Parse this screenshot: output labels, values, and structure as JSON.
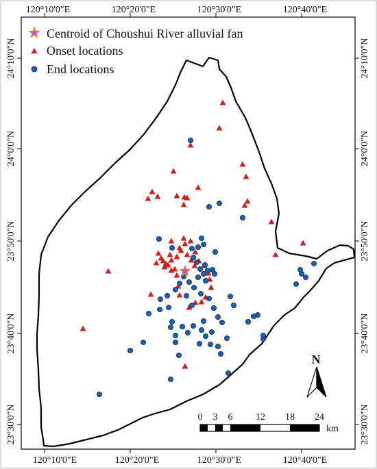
{
  "map": {
    "top_lon_labels": [
      "120°10'0\"E",
      "120°20'0\"E",
      "120°30'0\"E",
      "120°40'0\"E"
    ],
    "bottom_lon_labels": [
      "120°10'0\"E",
      "120°20'0\"E",
      "120°30'0\"E",
      "120°40'0\"E"
    ],
    "left_lat_labels": [
      "24°10'0\"N",
      "24°0'0\"N",
      "23°50'0\"N",
      "23°40'0\"N",
      "23°30'0\"N"
    ],
    "right_lat_labels": [
      "24°10'0\"N",
      "24°0'0\"N",
      "23°50'0\"N",
      "23°40'0\"N",
      "23°30'0\"N"
    ],
    "legend": [
      {
        "label": "Centroid of Choushui River alluvial fan",
        "symbol": "star",
        "color": "#cc55cc",
        "edge": "#d4a017"
      },
      {
        "label": "Onset locations",
        "symbol": "triangle",
        "color": "#cc2222"
      },
      {
        "label": "End  locations",
        "symbol": "circle",
        "color": "#1f5fb0",
        "edge": "#0d2a55"
      }
    ],
    "north_arrow": {
      "label": "N"
    },
    "scale_bar": {
      "ticks": [
        "0",
        "3",
        "6",
        "12",
        "18",
        "24"
      ],
      "unit": "km"
    },
    "colors": {
      "onset": "#cc2222",
      "end": "#1f5fb0",
      "centroid": "#cc55cc",
      "boundary": "#000000"
    }
  }
}
